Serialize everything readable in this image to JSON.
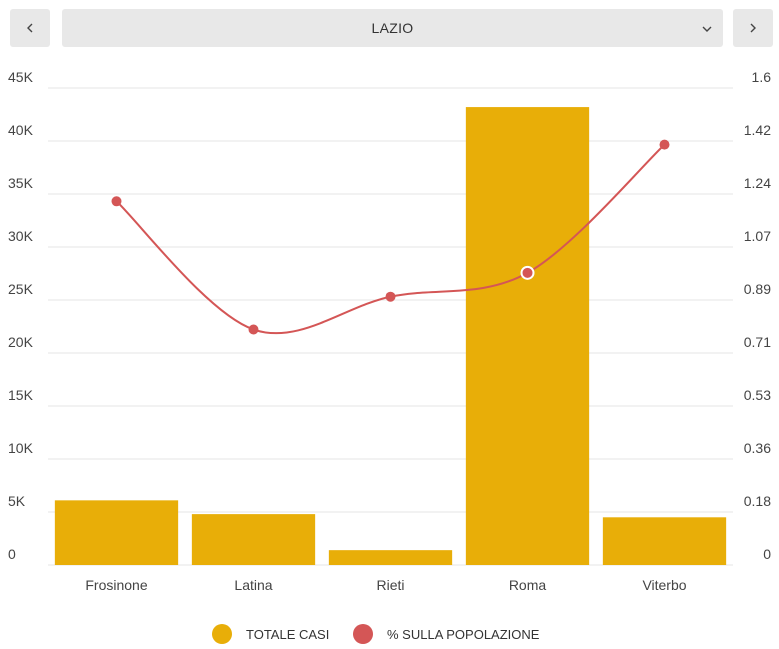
{
  "header": {
    "prev_icon": "chevron-left-icon",
    "next_icon": "chevron-right-icon",
    "region_selected": "LAZIO",
    "dropdown_icon": "chevron-down-icon"
  },
  "colors": {
    "bar": "#E8AE08",
    "line": "#D45656",
    "grid": "#e6e6e6",
    "button_bg": "#e8e8e8"
  },
  "chart_data": {
    "type": "bar",
    "categories": [
      "Frosinone",
      "Latina",
      "Rieti",
      "Roma",
      "Viterbo"
    ],
    "series": [
      {
        "name": "TOTALE CASI",
        "type": "bar",
        "axis": "left",
        "values": [
          6100,
          4800,
          1400,
          43200,
          4500
        ]
      },
      {
        "name": "% SULLA POPOLAZIONE",
        "type": "line",
        "axis": "right",
        "values": [
          1.22,
          0.79,
          0.9,
          0.98,
          1.41
        ]
      }
    ],
    "y_left": {
      "ylim": [
        0,
        45000
      ],
      "ticks": [
        "0",
        "5K",
        "10K",
        "15K",
        "20K",
        "25K",
        "30K",
        "35K",
        "40K",
        "45K"
      ]
    },
    "y_right": {
      "ylim": [
        0,
        1.6
      ],
      "ticks": [
        "0",
        "0.18",
        "0.36",
        "0.53",
        "0.71",
        "0.89",
        "1.07",
        "1.24",
        "1.42",
        "1.6"
      ]
    },
    "grid": true,
    "legend_position": "bottom-center",
    "highlighted_point": "Roma"
  },
  "legend": [
    {
      "label": "TOTALE CASI",
      "color": "#E8AE08"
    },
    {
      "label": "% SULLA POPOLAZIONE",
      "color": "#D45656"
    }
  ]
}
